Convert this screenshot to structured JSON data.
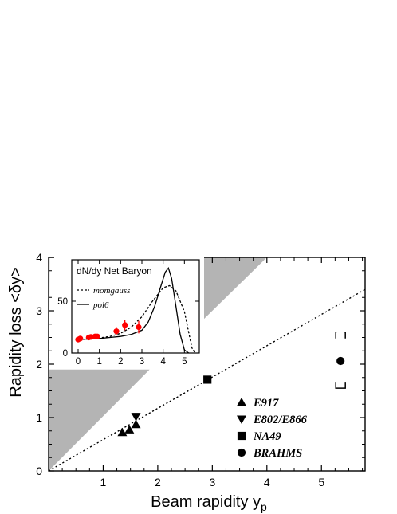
{
  "chart_data": [
    {
      "type": "scatter",
      "xlabel": "Beam rapidity y",
      "xlabel_sub": "p",
      "ylabel": "Rapidity loss <δy>",
      "xlim": [
        0,
        5.8
      ],
      "ylim": [
        0,
        4
      ],
      "xticks": [
        "1",
        "2",
        "3",
        "4",
        "5"
      ],
      "yticks": [
        "0",
        "1",
        "2",
        "3",
        "4"
      ],
      "legend_position": "bottom-right",
      "reference_line": {
        "style": "dotted",
        "x": [
          0,
          5.8
        ],
        "y": [
          0,
          3.4
        ]
      },
      "forbidden_regions": [
        {
          "color": "#b4b4b4",
          "points": [
            [
              0,
              0
            ],
            [
              0,
              4
            ],
            [
              0.02,
              4
            ]
          ]
        },
        {
          "color": "#b4b4b4",
          "points": [
            [
              0,
              0
            ],
            [
              0,
              1.9
            ],
            [
              1.85,
              1.9
            ]
          ]
        },
        {
          "color": "#b4b4b4",
          "points": [
            [
              2.8,
              2.8
            ],
            [
              2.8,
              4
            ],
            [
              4.0,
              4
            ]
          ]
        }
      ],
      "series": [
        {
          "name": "E917",
          "marker": "triangle-up",
          "x": [
            1.35,
            1.48,
            1.6
          ],
          "y": [
            0.72,
            0.77,
            0.87
          ]
        },
        {
          "name": "E802/E866",
          "marker": "triangle-down",
          "x": [
            1.6
          ],
          "y": [
            1.02
          ]
        },
        {
          "name": "NA49",
          "marker": "square",
          "x": [
            2.91
          ],
          "y": [
            1.71
          ]
        },
        {
          "name": "BRAHMS",
          "marker": "circle",
          "x": [
            5.35
          ],
          "y": [
            2.06
          ],
          "xerr": 0.05,
          "band": [
            1.55,
            2.6
          ]
        }
      ]
    },
    {
      "type": "line",
      "title": "dN/dy Net Baryon",
      "xlim": [
        -0.3,
        5.7
      ],
      "ylim": [
        0,
        90
      ],
      "xticks": [
        0,
        1,
        2,
        3,
        4,
        5
      ],
      "yticks": [
        0,
        50
      ],
      "legend_position": "top-left",
      "series": [
        {
          "name": "momgauss",
          "style": "dashed",
          "x": [
            0,
            0.5,
            1,
            1.5,
            2,
            2.5,
            3,
            3.5,
            4,
            4.3,
            4.6,
            5,
            5.2,
            5.35,
            5.5
          ],
          "y": [
            13,
            13.5,
            14.5,
            16,
            19,
            25,
            35,
            50,
            63,
            65,
            60,
            40,
            20,
            5,
            0
          ]
        },
        {
          "name": "pol6",
          "style": "solid",
          "x": [
            -0.1,
            0,
            0.5,
            1,
            1.5,
            2,
            2.5,
            3,
            3.3,
            3.6,
            3.9,
            4.1,
            4.25,
            4.4,
            4.6,
            4.8,
            5,
            5.2
          ],
          "y": [
            12,
            13,
            13.5,
            14,
            15,
            16,
            18,
            22,
            30,
            45,
            65,
            78,
            82,
            72,
            45,
            18,
            3,
            0
          ]
        },
        {
          "name": "data",
          "style": "points",
          "color": "#ff0000",
          "x": [
            0,
            0.1,
            0.5,
            0.6,
            0.8,
            0.9,
            1.8,
            2.2,
            2.85
          ],
          "y": [
            13,
            14,
            15,
            15.5,
            16,
            16,
            21,
            27,
            25
          ],
          "yerr": [
            2,
            2,
            2,
            2,
            2,
            2,
            4,
            5,
            6
          ]
        }
      ]
    }
  ]
}
